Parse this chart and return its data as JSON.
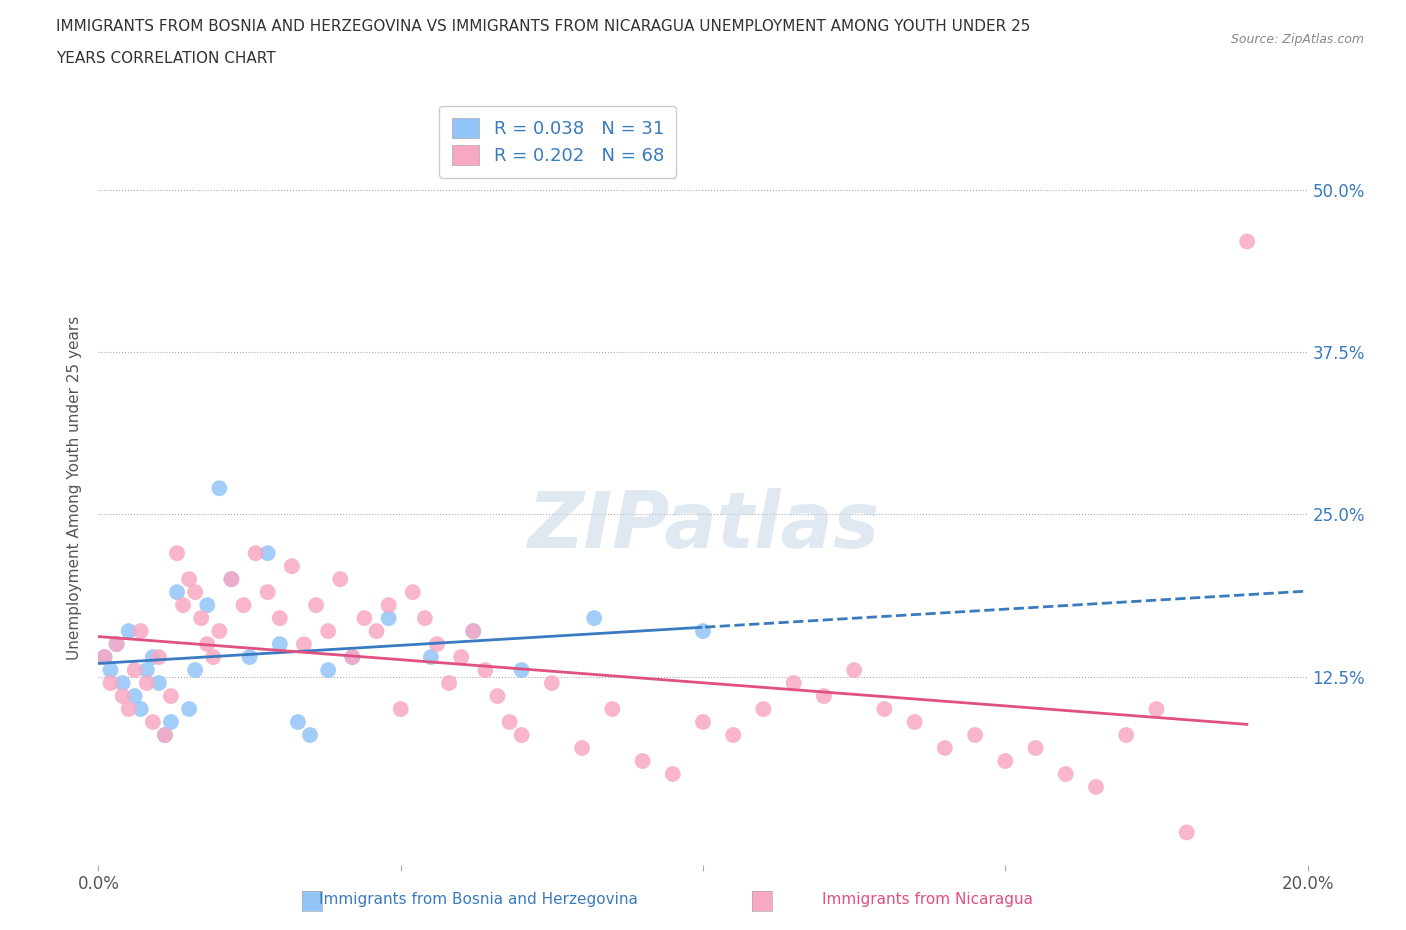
{
  "title_line1": "IMMIGRANTS FROM BOSNIA AND HERZEGOVINA VS IMMIGRANTS FROM NICARAGUA UNEMPLOYMENT AMONG YOUTH UNDER 25",
  "title_line2": "YEARS CORRELATION CHART",
  "source": "Source: ZipAtlas.com",
  "xlabel_bosnia": "Immigrants from Bosnia and Herzegovina",
  "xlabel_nicaragua": "Immigrants from Nicaragua",
  "ylabel": "Unemployment Among Youth under 25 years",
  "xlim": [
    0.0,
    0.2
  ],
  "ylim": [
    -0.02,
    0.56
  ],
  "yticks": [
    0.125,
    0.25,
    0.375,
    0.5
  ],
  "ytick_labels": [
    "12.5%",
    "25.0%",
    "37.5%",
    "50.0%"
  ],
  "xticks": [
    0.0,
    0.05,
    0.1,
    0.15,
    0.2
  ],
  "xtick_labels": [
    "0.0%",
    "",
    "",
    "",
    "20.0%"
  ],
  "R_bosnia": 0.038,
  "N_bosnia": 31,
  "R_nicaragua": 0.202,
  "N_nicaragua": 68,
  "color_bosnia": "#92c5f7",
  "color_nicaragua": "#f7a8c4",
  "line_color_bosnia": "#3a7abf",
  "line_color_nicaragua": "#e05080",
  "background_color": "#ffffff",
  "bosnia_x": [
    0.001,
    0.002,
    0.003,
    0.004,
    0.005,
    0.006,
    0.007,
    0.008,
    0.009,
    0.01,
    0.011,
    0.012,
    0.013,
    0.015,
    0.016,
    0.018,
    0.02,
    0.022,
    0.025,
    0.028,
    0.03,
    0.033,
    0.035,
    0.038,
    0.042,
    0.048,
    0.055,
    0.062,
    0.07,
    0.082,
    0.1
  ],
  "bosnia_y": [
    0.14,
    0.13,
    0.15,
    0.12,
    0.16,
    0.11,
    0.1,
    0.13,
    0.14,
    0.12,
    0.08,
    0.09,
    0.19,
    0.1,
    0.13,
    0.18,
    0.27,
    0.2,
    0.14,
    0.22,
    0.15,
    0.09,
    0.08,
    0.13,
    0.14,
    0.17,
    0.14,
    0.16,
    0.13,
    0.17,
    0.16
  ],
  "nicaragua_x": [
    0.001,
    0.002,
    0.003,
    0.004,
    0.005,
    0.006,
    0.007,
    0.008,
    0.009,
    0.01,
    0.011,
    0.012,
    0.013,
    0.014,
    0.015,
    0.016,
    0.017,
    0.018,
    0.019,
    0.02,
    0.022,
    0.024,
    0.026,
    0.028,
    0.03,
    0.032,
    0.034,
    0.036,
    0.038,
    0.04,
    0.042,
    0.044,
    0.046,
    0.048,
    0.05,
    0.052,
    0.054,
    0.056,
    0.058,
    0.06,
    0.062,
    0.064,
    0.066,
    0.068,
    0.07,
    0.075,
    0.08,
    0.085,
    0.09,
    0.095,
    0.1,
    0.105,
    0.11,
    0.115,
    0.12,
    0.125,
    0.13,
    0.135,
    0.14,
    0.145,
    0.15,
    0.155,
    0.16,
    0.165,
    0.17,
    0.175,
    0.18,
    0.19
  ],
  "nicaragua_y": [
    0.14,
    0.12,
    0.15,
    0.11,
    0.1,
    0.13,
    0.16,
    0.12,
    0.09,
    0.14,
    0.08,
    0.11,
    0.22,
    0.18,
    0.2,
    0.19,
    0.17,
    0.15,
    0.14,
    0.16,
    0.2,
    0.18,
    0.22,
    0.19,
    0.17,
    0.21,
    0.15,
    0.18,
    0.16,
    0.2,
    0.14,
    0.17,
    0.16,
    0.18,
    0.1,
    0.19,
    0.17,
    0.15,
    0.12,
    0.14,
    0.16,
    0.13,
    0.11,
    0.09,
    0.08,
    0.12,
    0.07,
    0.1,
    0.06,
    0.05,
    0.09,
    0.08,
    0.1,
    0.12,
    0.11,
    0.13,
    0.1,
    0.09,
    0.07,
    0.08,
    0.06,
    0.07,
    0.05,
    0.04,
    0.08,
    0.1,
    0.005,
    0.46
  ]
}
